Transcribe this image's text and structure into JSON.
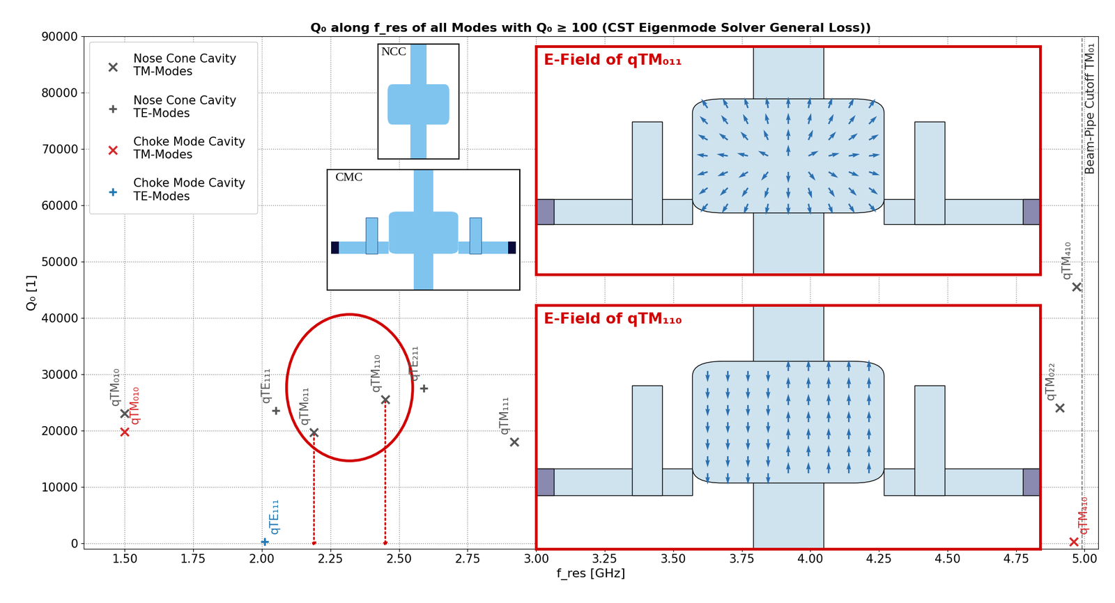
{
  "chart_data": {
    "type": "scatter",
    "title": "Q₀ along f_res of all Modes with Q₀ ≥ 100 (CST Eigenmode Solver General Loss))",
    "x_label": "f_res [GHz]",
    "y_label": "Q₀ [1]",
    "xlim": [
      1.35,
      5.05
    ],
    "xticks": [
      {
        "value": 1.5,
        "label": "1.50"
      },
      1.75,
      {
        "value": 2.0,
        "label": "2.00"
      },
      2.25,
      {
        "value": 2.5,
        "label": "2.50"
      },
      2.75,
      {
        "value": 3.0,
        "label": "3.00"
      },
      3.25,
      {
        "value": 3.5,
        "label": "3.50"
      },
      3.75,
      {
        "value": 4.0,
        "label": "4.00"
      },
      4.25,
      {
        "value": 4.5,
        "label": "4.50"
      },
      4.75,
      {
        "value": 5.0,
        "label": "5.00"
      }
    ],
    "ylim": [
      -1000,
      90000
    ],
    "yticks": [
      0,
      10000,
      20000,
      30000,
      40000,
      50000,
      60000,
      70000,
      80000,
      90000
    ],
    "grid": true,
    "legend": "upper left",
    "series": [
      {
        "name": "Nose Cone Cavity\nTM-Modes",
        "color": "#555555",
        "marker": "x",
        "x": [
          1.5,
          2.19,
          2.45,
          2.92,
          4.91,
          4.97
        ],
        "values": [
          23000,
          19700,
          25500,
          18000,
          24000,
          45500
        ],
        "labels": [
          "qTM₀₁₀",
          "qTM₀₁₁",
          "qTM₁₁₀",
          "qTM₁₁₁",
          "qTM₀₂₂",
          "qTM₄₁₀"
        ]
      },
      {
        "name": "Nose Cone Cavity\nTE-Modes",
        "color": "#555555",
        "marker": "plus",
        "x": [
          2.05,
          2.59
        ],
        "values": [
          23500,
          27500
        ],
        "labels": [
          "qTE₁₁₁",
          "qTE₂₁₁"
        ]
      },
      {
        "name": "Choke Mode Cavity\nTM-Modes",
        "color": "#d62728",
        "marker": "x",
        "x": [
          1.5,
          4.96
        ],
        "values": [
          19800,
          300
        ],
        "labels": [
          "qTM₀₁₀",
          "qTM₄₁₀"
        ]
      },
      {
        "name": "Choke Mode Cavity\nTE-Modes",
        "color": "#1f77b4",
        "marker": "plus",
        "x": [
          2.01
        ],
        "values": [
          300
        ],
        "labels": [
          "qTE₁₁₁"
        ]
      }
    ],
    "reference_line": {
      "x": 4.99,
      "label": "Beam-Pipe Cutoff TM₀₁",
      "line_style": "dashed"
    },
    "highlight_labels": [
      "qTM₀₁₁",
      "qTM₁₁₀"
    ],
    "insets": [
      {
        "title": "E-Field of qTM₀₁₁"
      },
      {
        "title": "E-Field of qTM₁₁₀"
      }
    ],
    "schematics": [
      "NCC",
      "CMC"
    ]
  }
}
